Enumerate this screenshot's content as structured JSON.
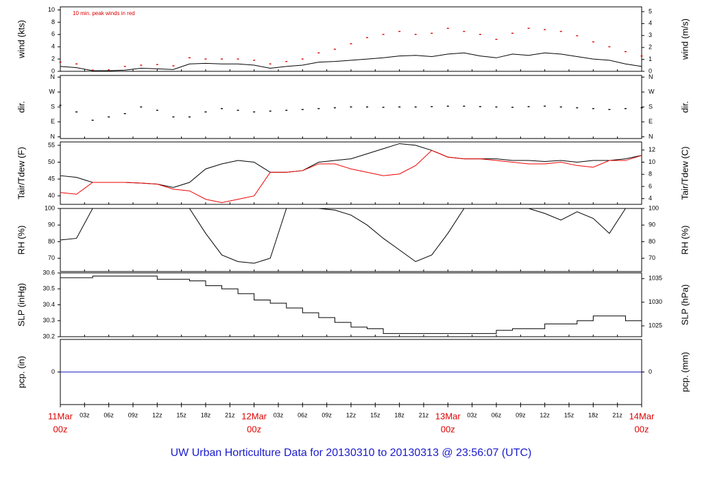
{
  "title": "UW Urban Horticulture Data for 20130310  to  20130313 @ 23:56:07  (UTC)",
  "chart_data": [
    {
      "type": "line",
      "ylabel": "wind (kts)",
      "y2label": "wind (m/s)",
      "annotation": "10 min. peak winds in red",
      "x": [
        0,
        2,
        4,
        6,
        8,
        10,
        12,
        14,
        16,
        18,
        20,
        22,
        24,
        26,
        28,
        30,
        32,
        34,
        36,
        38,
        40,
        42,
        44,
        46,
        48,
        50,
        52,
        54,
        56,
        58,
        60,
        62,
        64,
        66,
        68,
        70,
        72
      ],
      "series": [
        {
          "color": "#000000",
          "mark": "line",
          "values": [
            0.8,
            0.6,
            0.1,
            0.1,
            0.2,
            0.5,
            0.4,
            0.3,
            1.2,
            1.3,
            1.2,
            1.2,
            1.0,
            0.5,
            0.8,
            1.0,
            1.5,
            1.6,
            1.8,
            2.0,
            2.2,
            2.5,
            2.6,
            2.4,
            2.8,
            3.0,
            2.5,
            2.2,
            2.8,
            2.6,
            3.0,
            2.8,
            2.4,
            2.0,
            1.8,
            1.2,
            0.8
          ]
        },
        {
          "color": "#dd0000",
          "mark": "dot",
          "values": [
            1.5,
            1.2,
            0.2,
            0.2,
            0.8,
            1.0,
            1.1,
            0.9,
            2.2,
            2.0,
            2.0,
            2.0,
            1.8,
            1.2,
            1.6,
            2.0,
            3.0,
            3.6,
            4.5,
            5.5,
            6.0,
            6.5,
            6.0,
            6.2,
            7.0,
            6.5,
            6.0,
            5.2,
            6.2,
            7.0,
            6.8,
            6.5,
            5.8,
            4.8,
            4.0,
            3.2,
            2.5
          ]
        }
      ],
      "ylim": [
        0,
        10.5
      ],
      "yticks": [
        0,
        2,
        4,
        6,
        8,
        10
      ],
      "y2lim": [
        0,
        5.4
      ],
      "y2ticks": [
        0,
        1,
        2,
        3,
        4,
        5
      ]
    },
    {
      "type": "line",
      "ylabel": "dir.",
      "y2label": "dir.",
      "x": [
        0,
        2,
        4,
        6,
        8,
        10,
        12,
        14,
        16,
        18,
        20,
        22,
        24,
        26,
        28,
        30,
        32,
        34,
        36,
        38,
        40,
        42,
        44,
        46,
        48,
        50,
        52,
        54,
        56,
        58,
        60,
        62,
        64,
        66,
        68,
        70,
        72
      ],
      "series": [
        {
          "color": "#000000",
          "mark": "dot",
          "values": [
            190,
            150,
            100,
            120,
            140,
            180,
            160,
            120,
            120,
            150,
            170,
            160,
            150,
            155,
            160,
            165,
            170,
            175,
            180,
            180,
            178,
            180,
            180,
            182,
            185,
            185,
            182,
            180,
            178,
            182,
            185,
            180,
            175,
            170,
            165,
            170,
            175
          ]
        }
      ],
      "ylim": [
        -10,
        370
      ],
      "yticks": [
        {
          "value": 0,
          "label": "N"
        },
        {
          "value": 90,
          "label": "E"
        },
        {
          "value": 180,
          "label": "S"
        },
        {
          "value": 270,
          "label": "W"
        },
        {
          "value": 360,
          "label": "N"
        }
      ],
      "y2lim": [
        -10,
        370
      ],
      "y2ticks": [
        {
          "value": 0,
          "label": "N"
        },
        {
          "value": 90,
          "label": "E"
        },
        {
          "value": 180,
          "label": "S"
        },
        {
          "value": 270,
          "label": "W"
        },
        {
          "value": 360,
          "label": "N"
        }
      ]
    },
    {
      "type": "line",
      "ylabel": "Tair/Tdew (F)",
      "y2label": "Tair/Tdew (C)",
      "x": [
        0,
        2,
        4,
        6,
        8,
        10,
        12,
        14,
        16,
        18,
        20,
        22,
        24,
        26,
        28,
        30,
        32,
        34,
        36,
        38,
        40,
        42,
        44,
        46,
        48,
        50,
        52,
        54,
        56,
        58,
        60,
        62,
        64,
        66,
        68,
        70,
        72
      ],
      "series": [
        {
          "color": "#000000",
          "mark": "line",
          "values": [
            46,
            45.5,
            44,
            44,
            44,
            43.8,
            43.5,
            42.5,
            44,
            48,
            49.5,
            50.5,
            50,
            47,
            47,
            47.5,
            50,
            50.5,
            51,
            52.5,
            54,
            55.5,
            55,
            53.5,
            51.5,
            51,
            51,
            51,
            50.5,
            50.5,
            50.2,
            50.5,
            50,
            50.5,
            50.5,
            51,
            52
          ]
        },
        {
          "color": "#ee0000",
          "mark": "line",
          "values": [
            41,
            40.5,
            44,
            44,
            44,
            43.8,
            43.5,
            42,
            41.5,
            39,
            38,
            39,
            40,
            47,
            47,
            47.5,
            49.5,
            49.5,
            48,
            47,
            46,
            46.5,
            49,
            53.5,
            51.5,
            51,
            51,
            50.5,
            50,
            49.5,
            49.5,
            50,
            49,
            48.5,
            50.5,
            50.5,
            52
          ]
        }
      ],
      "ylim": [
        37.5,
        56
      ],
      "yticks": [
        40,
        45,
        50,
        55
      ],
      "y2lim": [
        3.06,
        13.33
      ],
      "y2ticks": [
        4,
        6,
        8,
        10,
        12
      ]
    },
    {
      "type": "line",
      "ylabel": "RH (%)",
      "y2label": "RH (%)",
      "x": [
        0,
        2,
        4,
        6,
        8,
        10,
        12,
        14,
        16,
        18,
        20,
        22,
        24,
        26,
        28,
        30,
        32,
        34,
        36,
        38,
        40,
        42,
        44,
        46,
        48,
        50,
        52,
        54,
        56,
        58,
        60,
        62,
        64,
        66,
        68,
        70,
        72
      ],
      "series": [
        {
          "color": "#000000",
          "mark": "line",
          "values": [
            81,
            82,
            100,
            100,
            100,
            100,
            100,
            100,
            100,
            85,
            72,
            68,
            67,
            70,
            100,
            100,
            100,
            99,
            96,
            90,
            82,
            75,
            68,
            72,
            85,
            100,
            100,
            100,
            100,
            100,
            97,
            93,
            98,
            94,
            85,
            100,
            null
          ]
        }
      ],
      "ylim": [
        62,
        100
      ],
      "yticks": [
        70,
        80,
        90,
        100
      ],
      "y2lim": [
        62,
        100
      ],
      "y2ticks": [
        70,
        80,
        90,
        100
      ]
    },
    {
      "type": "line",
      "ylabel": "SLP (inHg)",
      "y2label": "SLP (hPa)",
      "x": [
        0,
        2,
        4,
        6,
        8,
        10,
        12,
        14,
        16,
        18,
        20,
        22,
        24,
        26,
        28,
        30,
        32,
        34,
        36,
        38,
        40,
        42,
        44,
        46,
        48,
        50,
        52,
        54,
        56,
        58,
        60,
        62,
        64,
        66,
        68,
        70,
        72
      ],
      "series": [
        {
          "color": "#000000",
          "mark": "step",
          "values": [
            30.57,
            30.57,
            30.58,
            30.58,
            30.58,
            30.58,
            30.56,
            30.56,
            30.55,
            30.52,
            30.5,
            30.47,
            30.43,
            30.41,
            30.38,
            30.35,
            30.32,
            30.29,
            30.26,
            30.25,
            30.22,
            30.22,
            30.22,
            30.22,
            30.22,
            30.22,
            30.22,
            30.24,
            30.25,
            30.25,
            30.28,
            30.28,
            30.3,
            30.33,
            30.33,
            30.3,
            30.27
          ]
        }
      ],
      "ylim": [
        30.2,
        30.6
      ],
      "yticks": [
        30.2,
        30.3,
        30.4,
        30.5,
        30.6
      ],
      "y2lim": [
        1022.7,
        1036.2
      ],
      "y2ticks": [
        1025,
        1030,
        1035
      ]
    },
    {
      "type": "line",
      "ylabel": "pcp. (in)",
      "y2label": "pcp. (mm)",
      "x": [
        0,
        72
      ],
      "series": [
        {
          "color": "#2222cc",
          "mark": "line",
          "values": [
            0,
            0
          ]
        }
      ],
      "ylim": [
        -1,
        1
      ],
      "yticks": [
        0
      ],
      "y2lim": [
        -25.4,
        25.4
      ],
      "y2ticks": [
        0
      ],
      "xlim": [
        0,
        72
      ],
      "xticks": [
        {
          "value": 0,
          "label": "11Mar",
          "sublabel": "00z"
        },
        {
          "value": 3,
          "label": "03z"
        },
        {
          "value": 6,
          "label": "06z"
        },
        {
          "value": 9,
          "label": "09z"
        },
        {
          "value": 12,
          "label": "12z"
        },
        {
          "value": 15,
          "label": "15z"
        },
        {
          "value": 18,
          "label": "18z"
        },
        {
          "value": 21,
          "label": "21z"
        },
        {
          "value": 24,
          "label": "12Mar",
          "sublabel": "00z"
        },
        {
          "value": 27,
          "label": "03z"
        },
        {
          "value": 30,
          "label": "06z"
        },
        {
          "value": 33,
          "label": "09z"
        },
        {
          "value": 36,
          "label": "12z"
        },
        {
          "value": 39,
          "label": "15z"
        },
        {
          "value": 42,
          "label": "18z"
        },
        {
          "value": 45,
          "label": "21z"
        },
        {
          "value": 48,
          "label": "13Mar",
          "sublabel": "00z"
        },
        {
          "value": 51,
          "label": "03z"
        },
        {
          "value": 54,
          "label": "06z"
        },
        {
          "value": 57,
          "label": "09z"
        },
        {
          "value": 60,
          "label": "12z"
        },
        {
          "value": 63,
          "label": "15z"
        },
        {
          "value": 66,
          "label": "18z"
        },
        {
          "value": 69,
          "label": "21z"
        },
        {
          "value": 72,
          "label": "14Mar",
          "sublabel": "00z"
        }
      ]
    }
  ]
}
